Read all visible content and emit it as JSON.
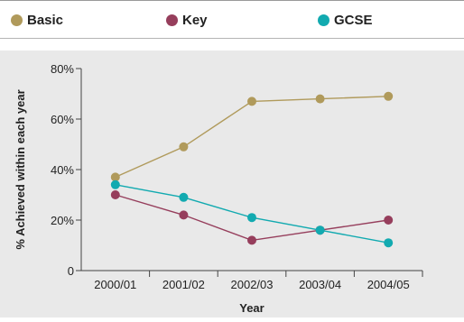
{
  "legend": [
    {
      "label": "Basic",
      "color": "#b09a5b"
    },
    {
      "label": "Key",
      "color": "#963e5c"
    },
    {
      "label": "GCSE",
      "color": "#12aab0"
    }
  ],
  "chart_data": {
    "type": "line",
    "title": "",
    "xlabel": "Year",
    "ylabel": "% Achieved within each year",
    "categories": [
      "2000/01",
      "2001/02",
      "2002/03",
      "2003/04",
      "2004/05"
    ],
    "y_ticks": [
      "0",
      "20%",
      "40%",
      "60%",
      "80%"
    ],
    "ylim": [
      0,
      80
    ],
    "grid": false,
    "legend_position": "top",
    "series": [
      {
        "name": "Basic",
        "color": "#b09a5b",
        "values": [
          37,
          49,
          67,
          68,
          69
        ]
      },
      {
        "name": "Key",
        "color": "#963e5c",
        "values": [
          30,
          22,
          12,
          16,
          20
        ]
      },
      {
        "name": "GCSE",
        "color": "#12aab0",
        "values": [
          34,
          29,
          21,
          16,
          11
        ]
      }
    ]
  }
}
